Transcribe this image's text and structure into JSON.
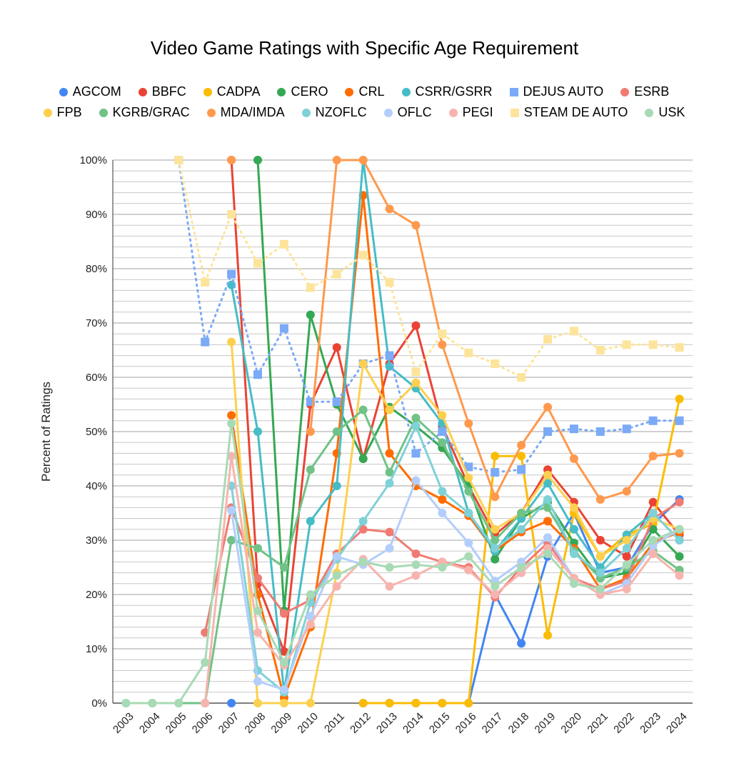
{
  "chart_data": {
    "type": "line",
    "title": "Video Game Ratings with Specific Age Requirement",
    "ylabel": "Percent of Ratings",
    "xlabel": "",
    "ylim": [
      0,
      100
    ],
    "y_ticks": [
      "0%",
      "10%",
      "20%",
      "30%",
      "40%",
      "50%",
      "60%",
      "70%",
      "80%",
      "90%",
      "100%"
    ],
    "categories": [
      "2003",
      "2004",
      "2005",
      "2006",
      "2007",
      "2008",
      "2009",
      "2010",
      "2011",
      "2012",
      "2013",
      "2014",
      "2015",
      "2016",
      "2017",
      "2018",
      "2019",
      "2020",
      "2021",
      "2022",
      "2023",
      "2024"
    ],
    "legend_position": "top",
    "grid": true,
    "series": [
      {
        "name": "AGCOM",
        "color": "#4285F4",
        "marker": "circle",
        "dashed": false,
        "values": [
          null,
          null,
          null,
          null,
          0,
          null,
          null,
          null,
          null,
          0,
          0,
          0,
          0,
          0,
          20,
          11,
          27,
          35,
          24,
          25,
          33,
          37.5
        ]
      },
      {
        "name": "BBFC",
        "color": "#EA4335",
        "marker": "circle",
        "dashed": false,
        "values": [
          null,
          null,
          null,
          null,
          100,
          22,
          9.5,
          55,
          65.5,
          45,
          62.5,
          69.5,
          51,
          40,
          31,
          35,
          43,
          37,
          30,
          27,
          37,
          31
        ]
      },
      {
        "name": "CADPA",
        "color": "#FBBC04",
        "marker": "circle",
        "dashed": false,
        "values": [
          null,
          null,
          null,
          null,
          null,
          null,
          null,
          null,
          null,
          0,
          0,
          0,
          0,
          0,
          45.5,
          45.5,
          12.5,
          35,
          27,
          31,
          33,
          56
        ]
      },
      {
        "name": "CERO",
        "color": "#34A853",
        "marker": "circle",
        "dashed": false,
        "values": [
          null,
          null,
          null,
          null,
          null,
          100,
          17,
          71.5,
          55,
          45,
          54.5,
          51,
          47,
          40,
          26.5,
          34,
          37,
          29.5,
          23,
          24,
          32,
          27
        ]
      },
      {
        "name": "CRL",
        "color": "#FF6D01",
        "marker": "circle",
        "dashed": false,
        "values": [
          null,
          null,
          null,
          null,
          53,
          20,
          1,
          14,
          46,
          93.5,
          46,
          40,
          37.5,
          34.5,
          28,
          31.5,
          33.5,
          28.5,
          21,
          23,
          29.5,
          31.5
        ]
      },
      {
        "name": "CSRR/GSRR",
        "color": "#46BDC6",
        "marker": "circle",
        "dashed": false,
        "values": [
          null,
          null,
          null,
          null,
          77,
          50,
          2,
          33.5,
          40,
          100,
          62,
          58,
          51.5,
          35,
          28,
          34,
          40.5,
          32,
          25,
          31,
          35,
          30
        ]
      },
      {
        "name": "DEJUS AUTO",
        "color": "#7BAAF7",
        "marker": "square",
        "dashed": true,
        "values": [
          null,
          null,
          100,
          66.5,
          79,
          60.5,
          69,
          55.5,
          55.5,
          62.5,
          64,
          46,
          50,
          43.5,
          42.5,
          43,
          50,
          50.5,
          50,
          50.5,
          52,
          52
        ]
      },
      {
        "name": "ESRB",
        "color": "#F07B72",
        "marker": "circle",
        "dashed": false,
        "values": [
          null,
          null,
          null,
          13,
          36,
          23,
          16.5,
          19,
          27.5,
          32,
          31.5,
          27.5,
          26,
          25,
          19.5,
          25,
          29.5,
          23,
          21,
          22.5,
          34,
          37
        ]
      },
      {
        "name": "FPB",
        "color": "#FCD04F",
        "marker": "circle",
        "dashed": false,
        "values": [
          null,
          null,
          null,
          null,
          66.5,
          0,
          0,
          0,
          24,
          62.5,
          54,
          59,
          53,
          41.5,
          32,
          35,
          42,
          36,
          27,
          30,
          34,
          32
        ]
      },
      {
        "name": "KGRB/GRAC",
        "color": "#71C287",
        "marker": "circle",
        "dashed": false,
        "values": [
          0,
          0,
          0,
          0,
          30,
          28.5,
          25,
          43,
          50,
          54,
          42.5,
          52.5,
          48,
          39,
          30,
          35,
          36,
          28,
          23,
          25,
          28,
          24.5
        ]
      },
      {
        "name": "MDA/IMDA",
        "color": "#FF994D",
        "marker": "circle",
        "dashed": false,
        "values": [
          null,
          null,
          null,
          null,
          100,
          null,
          null,
          50,
          100,
          100,
          91,
          88,
          66,
          51.5,
          38,
          47.5,
          54.5,
          45,
          37.5,
          39,
          45.5,
          46
        ]
      },
      {
        "name": "NZOFLC",
        "color": "#7ED1D7",
        "marker": "circle",
        "dashed": false,
        "values": [
          null,
          null,
          null,
          null,
          40,
          6,
          2,
          18.5,
          26.5,
          33.5,
          40.5,
          51,
          39,
          35,
          28.5,
          32,
          37.5,
          27.5,
          24,
          28.5,
          35,
          30
        ]
      },
      {
        "name": "OFLC",
        "color": "#B3CEFB",
        "marker": "circle",
        "dashed": false,
        "values": [
          null,
          null,
          null,
          null,
          35.5,
          4,
          2.5,
          16,
          27,
          25.5,
          28.5,
          41,
          35,
          29.5,
          22.5,
          26,
          30.5,
          23,
          20,
          22,
          29,
          32
        ]
      },
      {
        "name": "PEGI",
        "color": "#F7B4AE",
        "marker": "circle",
        "dashed": false,
        "values": [
          null,
          null,
          null,
          0,
          45.5,
          13,
          7,
          14.5,
          21.5,
          26.5,
          21.5,
          23.5,
          26,
          24.5,
          20,
          24,
          28.5,
          23,
          20,
          21,
          27.5,
          23.5
        ]
      },
      {
        "name": "STEAM DE AUTO",
        "color": "#FDE49B",
        "marker": "square",
        "dashed": true,
        "values": [
          null,
          null,
          100,
          77.5,
          90,
          81,
          84.5,
          76.5,
          79,
          82.5,
          77.5,
          61,
          68,
          64.5,
          62.5,
          60,
          67,
          68.5,
          65,
          66,
          66,
          65.5
        ]
      },
      {
        "name": "USK",
        "color": "#A8DAB5",
        "marker": "circle",
        "dashed": false,
        "values": [
          0,
          0,
          0,
          7.5,
          51.5,
          17,
          7.5,
          20,
          23.5,
          26,
          25,
          25.5,
          25,
          27,
          21.5,
          25,
          27.5,
          22,
          21,
          25.5,
          30,
          32
        ]
      }
    ]
  }
}
